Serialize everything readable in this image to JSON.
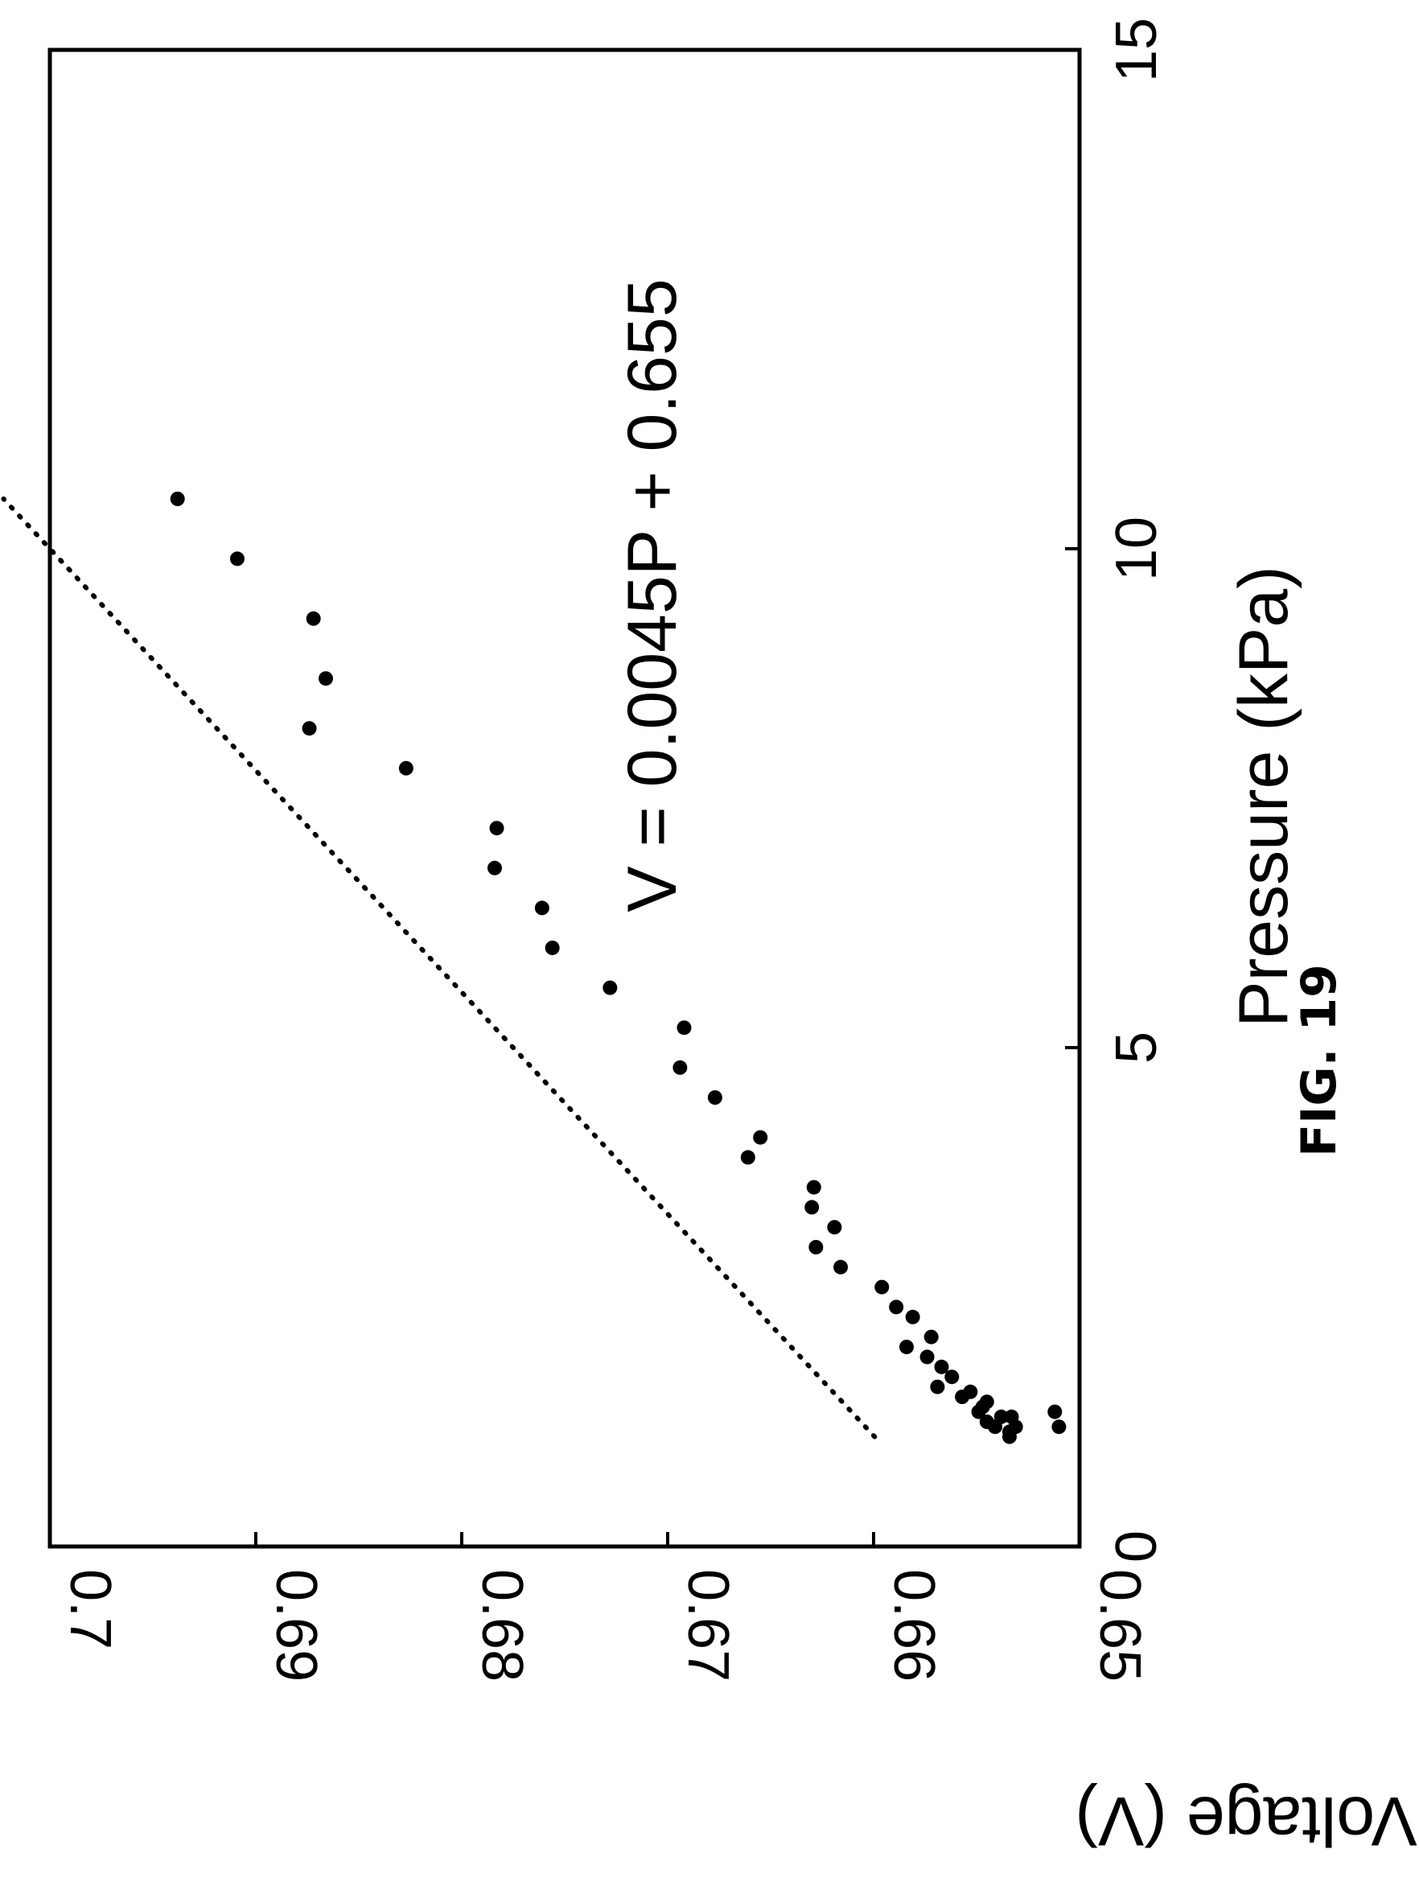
{
  "caption": "FIG. 19",
  "chart_data": {
    "type": "scatter",
    "orientation": "figure rotated 90 degrees counter-clockwise",
    "title": "",
    "xlabel": "Pressure (kPa)",
    "ylabel": "Output Voltage (V)",
    "xlim": [
      0,
      15
    ],
    "ylim": [
      0.65,
      0.7
    ],
    "x_ticks": [
      {
        "value": 0,
        "label": "0"
      },
      {
        "value": 5,
        "label": "5"
      },
      {
        "value": 10,
        "label": "10"
      },
      {
        "value": 15,
        "label": "15"
      }
    ],
    "y_ticks": [
      {
        "value": 0.65,
        "label": "0.65"
      },
      {
        "value": 0.66,
        "label": "0.66"
      },
      {
        "value": 0.67,
        "label": "0.67"
      },
      {
        "value": 0.68,
        "label": "0.68"
      },
      {
        "value": 0.69,
        "label": "0.69"
      },
      {
        "value": 0.7,
        "label": "0.7"
      }
    ],
    "grid": false,
    "annotation": "V = 0.0045P + 0.655",
    "fit_line": {
      "slope": 0.0045,
      "intercept": 0.655,
      "x_range": [
        1.1,
        10.5
      ],
      "style": "dotted"
    },
    "points": [
      [
        10.5,
        0.6938
      ],
      [
        9.9,
        0.6909
      ],
      [
        9.3,
        0.6872
      ],
      [
        8.7,
        0.6866
      ],
      [
        8.2,
        0.6874
      ],
      [
        7.8,
        0.6827
      ],
      [
        7.2,
        0.6783
      ],
      [
        6.8,
        0.6784
      ],
      [
        6.4,
        0.6761
      ],
      [
        6.0,
        0.6756
      ],
      [
        5.6,
        0.6728
      ],
      [
        5.2,
        0.6692
      ],
      [
        4.8,
        0.6694
      ],
      [
        4.5,
        0.6677
      ],
      [
        4.1,
        0.6655
      ],
      [
        3.9,
        0.6661
      ],
      [
        3.6,
        0.6629
      ],
      [
        3.4,
        0.663
      ],
      [
        3.2,
        0.6619
      ],
      [
        3.0,
        0.6628
      ],
      [
        2.8,
        0.6616
      ],
      [
        2.6,
        0.6596
      ],
      [
        2.4,
        0.6589
      ],
      [
        2.3,
        0.6581
      ],
      [
        2.1,
        0.6572
      ],
      [
        2.0,
        0.6584
      ],
      [
        1.9,
        0.6574
      ],
      [
        1.8,
        0.6567
      ],
      [
        1.7,
        0.6562
      ],
      [
        1.6,
        0.6569
      ],
      [
        1.55,
        0.6553
      ],
      [
        1.5,
        0.6557
      ],
      [
        1.45,
        0.6545
      ],
      [
        1.4,
        0.6547
      ],
      [
        1.35,
        0.6549
      ],
      [
        1.3,
        0.6538
      ],
      [
        1.3,
        0.6533
      ],
      [
        1.25,
        0.6545
      ],
      [
        1.2,
        0.6531
      ],
      [
        1.2,
        0.6541
      ],
      [
        1.15,
        0.6534
      ],
      [
        1.1,
        0.6534
      ],
      [
        1.2,
        0.651
      ],
      [
        1.35,
        0.6512
      ]
    ]
  }
}
